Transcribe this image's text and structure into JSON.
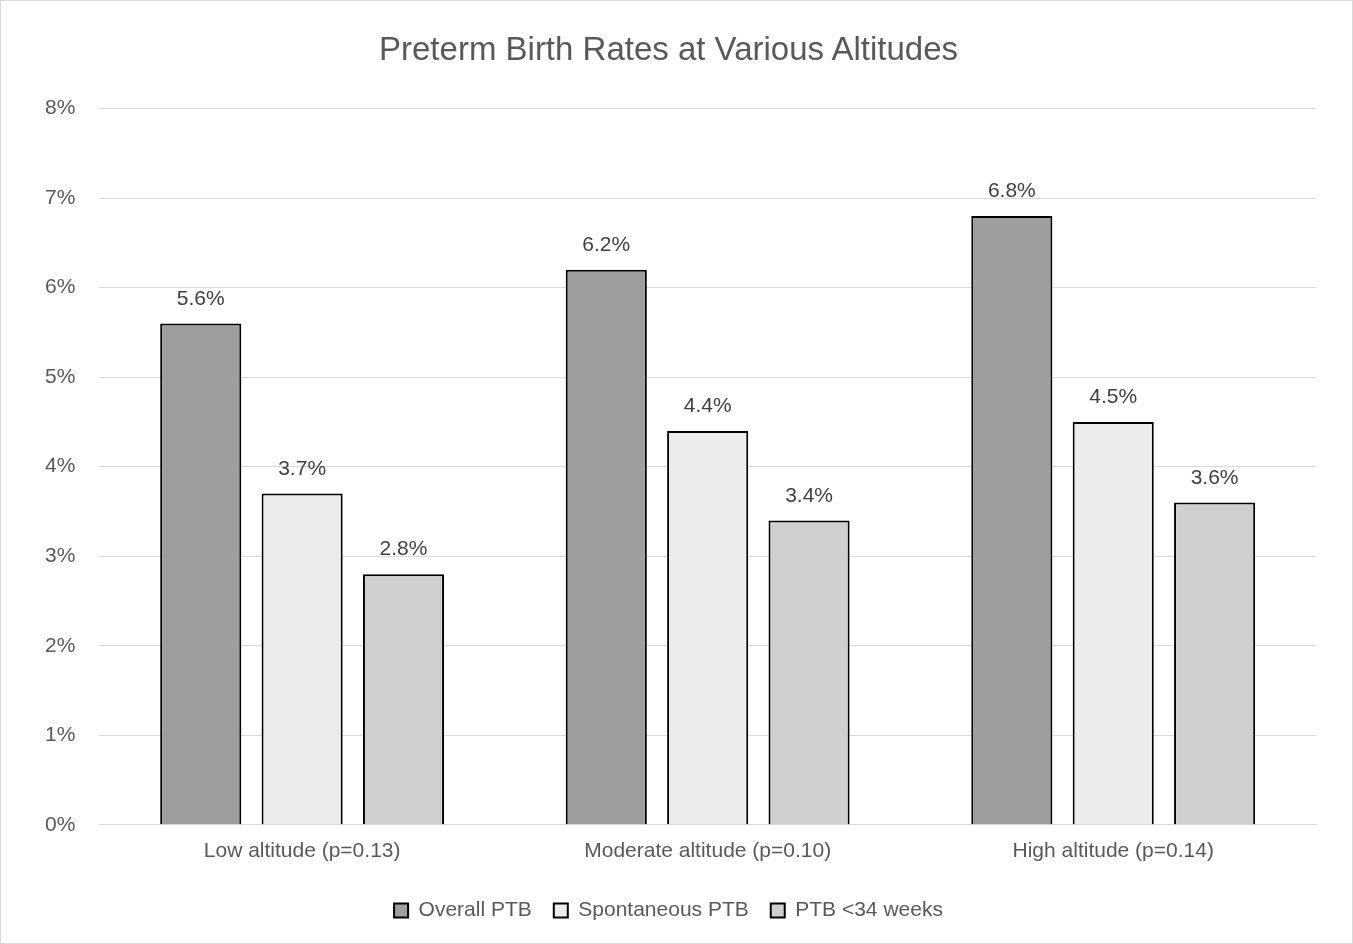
{
  "chart_data": {
    "type": "bar",
    "title": "Preterm Birth Rates at Various Altitudes",
    "categories": [
      "Low altitude (p=0.13)",
      "Moderate altitude (p=0.10)",
      "High altitude (p=0.14)"
    ],
    "series": [
      {
        "name": "Overall PTB",
        "color": "#9e9e9e",
        "values": [
          5.6,
          6.2,
          6.8
        ],
        "value_labels": [
          "5.6%",
          "6.2%",
          "6.8%"
        ]
      },
      {
        "name": "Spontaneous PTB",
        "color": "#ececec",
        "values": [
          3.7,
          4.4,
          4.5
        ],
        "value_labels": [
          "3.7%",
          "4.4%",
          "4.5%"
        ]
      },
      {
        "name": "PTB <34 weeks",
        "color": "#cfcfcf",
        "values": [
          2.8,
          3.4,
          3.6
        ],
        "value_labels": [
          "2.8%",
          "3.4%",
          "3.6%"
        ]
      }
    ],
    "ylim": [
      0,
      8
    ],
    "yticks": [
      {
        "value": 0,
        "label": "0%"
      },
      {
        "value": 1,
        "label": "1%"
      },
      {
        "value": 2,
        "label": "2%"
      },
      {
        "value": 3,
        "label": "3%"
      },
      {
        "value": 4,
        "label": "4%"
      },
      {
        "value": 5,
        "label": "5%"
      },
      {
        "value": 6,
        "label": "6%"
      },
      {
        "value": 7,
        "label": "7%"
      },
      {
        "value": 8,
        "label": "8%"
      }
    ],
    "grid": "y",
    "legend": "bottom"
  }
}
